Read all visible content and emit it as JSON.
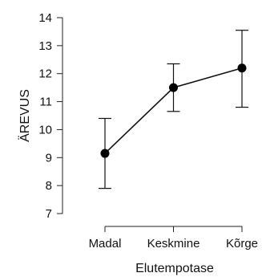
{
  "chart_data": {
    "type": "line",
    "title": "",
    "xlabel": "Elutempotase",
    "ylabel": "ÄREVUS",
    "categories": [
      "Madal",
      "Keskmine",
      "Kõrge"
    ],
    "ylim": [
      7,
      14
    ],
    "yticks": [
      7,
      8,
      9,
      10,
      11,
      12,
      13,
      14
    ],
    "grid": false,
    "series": [
      {
        "name": "",
        "values": [
          9.15,
          11.5,
          12.2
        ],
        "err_low": [
          7.9,
          10.65,
          10.8
        ],
        "err_high": [
          10.4,
          12.35,
          13.55
        ]
      }
    ],
    "colors": {
      "line": "#111111",
      "marker": "#000000"
    }
  }
}
